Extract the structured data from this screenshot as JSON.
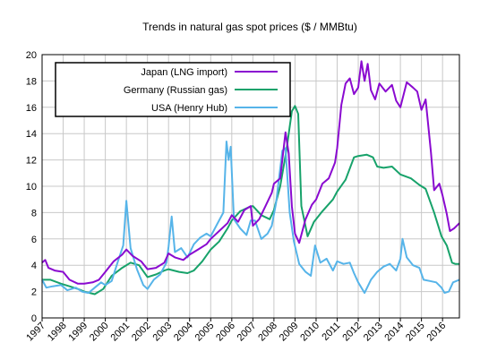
{
  "chart_data": {
    "type": "line",
    "title": "Trends in natural gas spot prices ($ / MMBtu)",
    "xlabel": "",
    "ylabel": "",
    "xlim": [
      1997,
      2016.8
    ],
    "ylim": [
      0,
      20
    ],
    "x_ticks": [
      "1997",
      "1998",
      "1999",
      "2000",
      "2001",
      "2002",
      "2003",
      "2004",
      "2005",
      "2006",
      "2007",
      "2008",
      "2009",
      "2010",
      "2011",
      "2012",
      "2013",
      "2014",
      "2015",
      "2016"
    ],
    "y_ticks": [
      "0",
      "2",
      "4",
      "6",
      "8",
      "10",
      "12",
      "14",
      "16",
      "18",
      "20"
    ],
    "grid": true,
    "legend_position": "top-left",
    "series": [
      {
        "name": "Japan (LNG import)",
        "color": "#8a0ad0",
        "points": [
          [
            1997.0,
            4.2
          ],
          [
            1997.15,
            4.4
          ],
          [
            1997.3,
            3.8
          ],
          [
            1997.6,
            3.6
          ],
          [
            1998.0,
            3.5
          ],
          [
            1998.3,
            2.9
          ],
          [
            1998.7,
            2.6
          ],
          [
            1999.0,
            2.6
          ],
          [
            1999.4,
            2.7
          ],
          [
            1999.7,
            2.9
          ],
          [
            2000.0,
            3.5
          ],
          [
            2000.4,
            4.3
          ],
          [
            2000.8,
            4.8
          ],
          [
            2001.0,
            5.2
          ],
          [
            2001.3,
            4.7
          ],
          [
            2001.7,
            4.3
          ],
          [
            2002.0,
            3.7
          ],
          [
            2002.4,
            3.8
          ],
          [
            2002.8,
            4.2
          ],
          [
            2003.0,
            4.9
          ],
          [
            2003.3,
            4.6
          ],
          [
            2003.7,
            4.4
          ],
          [
            2004.0,
            4.8
          ],
          [
            2004.4,
            5.2
          ],
          [
            2004.8,
            5.6
          ],
          [
            2005.0,
            6.0
          ],
          [
            2005.4,
            6.6
          ],
          [
            2005.8,
            7.2
          ],
          [
            2006.0,
            7.8
          ],
          [
            2006.3,
            7.3
          ],
          [
            2006.6,
            8.2
          ],
          [
            2006.9,
            8.5
          ],
          [
            2007.0,
            7.0
          ],
          [
            2007.3,
            7.5
          ],
          [
            2007.6,
            8.5
          ],
          [
            2007.9,
            9.5
          ],
          [
            2008.0,
            10.2
          ],
          [
            2008.3,
            10.6
          ],
          [
            2008.55,
            14.1
          ],
          [
            2008.7,
            12.5
          ],
          [
            2008.85,
            8.5
          ],
          [
            2009.0,
            6.4
          ],
          [
            2009.2,
            5.7
          ],
          [
            2009.5,
            7.5
          ],
          [
            2009.8,
            8.6
          ],
          [
            2010.0,
            9.0
          ],
          [
            2010.3,
            10.2
          ],
          [
            2010.6,
            10.6
          ],
          [
            2010.9,
            11.8
          ],
          [
            2011.0,
            12.9
          ],
          [
            2011.2,
            16.2
          ],
          [
            2011.4,
            17.8
          ],
          [
            2011.6,
            18.2
          ],
          [
            2011.8,
            17.0
          ],
          [
            2012.0,
            17.5
          ],
          [
            2012.15,
            19.5
          ],
          [
            2012.3,
            18.0
          ],
          [
            2012.45,
            19.3
          ],
          [
            2012.6,
            17.3
          ],
          [
            2012.8,
            16.6
          ],
          [
            2013.0,
            17.8
          ],
          [
            2013.3,
            17.2
          ],
          [
            2013.6,
            17.7
          ],
          [
            2013.8,
            16.5
          ],
          [
            2014.0,
            16.0
          ],
          [
            2014.3,
            17.9
          ],
          [
            2014.6,
            17.5
          ],
          [
            2014.8,
            17.2
          ],
          [
            2015.0,
            15.8
          ],
          [
            2015.2,
            16.6
          ],
          [
            2015.45,
            12.6
          ],
          [
            2015.6,
            9.7
          ],
          [
            2015.85,
            10.2
          ],
          [
            2016.0,
            9.3
          ],
          [
            2016.2,
            7.9
          ],
          [
            2016.35,
            6.6
          ],
          [
            2016.55,
            6.8
          ],
          [
            2016.8,
            7.2
          ]
        ]
      },
      {
        "name": "Germany (Russian gas)",
        "color": "#17a26a",
        "points": [
          [
            1997.0,
            2.9
          ],
          [
            1997.4,
            2.9
          ],
          [
            1997.9,
            2.6
          ],
          [
            1998.3,
            2.4
          ],
          [
            1998.7,
            2.2
          ],
          [
            1999.0,
            2.0
          ],
          [
            1999.5,
            1.8
          ],
          [
            1999.9,
            2.2
          ],
          [
            2000.3,
            3.2
          ],
          [
            2000.8,
            3.8
          ],
          [
            2001.2,
            4.2
          ],
          [
            2001.6,
            4.0
          ],
          [
            2002.0,
            3.1
          ],
          [
            2002.4,
            3.3
          ],
          [
            2002.8,
            3.6
          ],
          [
            2003.0,
            3.7
          ],
          [
            2003.5,
            3.5
          ],
          [
            2003.9,
            3.4
          ],
          [
            2004.2,
            3.6
          ],
          [
            2004.6,
            4.3
          ],
          [
            2005.0,
            5.2
          ],
          [
            2005.4,
            5.8
          ],
          [
            2005.8,
            6.8
          ],
          [
            2006.0,
            7.4
          ],
          [
            2006.4,
            8.1
          ],
          [
            2006.8,
            8.4
          ],
          [
            2007.0,
            8.5
          ],
          [
            2007.4,
            7.8
          ],
          [
            2007.8,
            7.5
          ],
          [
            2008.0,
            8.2
          ],
          [
            2008.3,
            10.0
          ],
          [
            2008.6,
            12.8
          ],
          [
            2008.85,
            15.7
          ],
          [
            2009.0,
            16.1
          ],
          [
            2009.15,
            15.5
          ],
          [
            2009.3,
            8.5
          ],
          [
            2009.6,
            6.2
          ],
          [
            2009.9,
            7.3
          ],
          [
            2010.3,
            8.1
          ],
          [
            2010.8,
            9.0
          ],
          [
            2011.0,
            9.6
          ],
          [
            2011.4,
            10.5
          ],
          [
            2011.8,
            12.2
          ],
          [
            2012.0,
            12.3
          ],
          [
            2012.4,
            12.4
          ],
          [
            2012.7,
            12.2
          ],
          [
            2012.9,
            11.5
          ],
          [
            2013.2,
            11.4
          ],
          [
            2013.6,
            11.5
          ],
          [
            2014.0,
            10.9
          ],
          [
            2014.5,
            10.6
          ],
          [
            2014.9,
            10.1
          ],
          [
            2015.2,
            9.8
          ],
          [
            2015.6,
            8.0
          ],
          [
            2015.95,
            6.2
          ],
          [
            2016.2,
            5.5
          ],
          [
            2016.45,
            4.2
          ],
          [
            2016.6,
            4.1
          ],
          [
            2016.8,
            4.1
          ]
        ]
      },
      {
        "name": "USA (Henry Hub)",
        "color": "#56b4e9",
        "points": [
          [
            1997.0,
            2.9
          ],
          [
            1997.2,
            2.3
          ],
          [
            1997.5,
            2.4
          ],
          [
            1997.9,
            2.5
          ],
          [
            1998.2,
            2.1
          ],
          [
            1998.6,
            2.3
          ],
          [
            1998.9,
            2.0
          ],
          [
            1999.2,
            1.9
          ],
          [
            1999.5,
            2.3
          ],
          [
            1999.8,
            2.7
          ],
          [
            2000.0,
            2.5
          ],
          [
            2000.3,
            2.8
          ],
          [
            2000.6,
            4.3
          ],
          [
            2000.85,
            5.5
          ],
          [
            2001.0,
            8.9
          ],
          [
            2001.2,
            5.3
          ],
          [
            2001.5,
            3.7
          ],
          [
            2001.8,
            2.5
          ],
          [
            2002.0,
            2.2
          ],
          [
            2002.3,
            2.9
          ],
          [
            2002.6,
            3.3
          ],
          [
            2002.9,
            4.2
          ],
          [
            2003.0,
            5.4
          ],
          [
            2003.15,
            7.7
          ],
          [
            2003.3,
            5.0
          ],
          [
            2003.6,
            5.3
          ],
          [
            2003.9,
            4.6
          ],
          [
            2004.2,
            5.6
          ],
          [
            2004.5,
            6.1
          ],
          [
            2004.8,
            6.4
          ],
          [
            2005.0,
            6.2
          ],
          [
            2005.3,
            7.1
          ],
          [
            2005.6,
            8.0
          ],
          [
            2005.75,
            13.4
          ],
          [
            2005.85,
            12.0
          ],
          [
            2005.95,
            13.0
          ],
          [
            2006.1,
            7.5
          ],
          [
            2006.4,
            6.8
          ],
          [
            2006.7,
            6.3
          ],
          [
            2006.9,
            7.4
          ],
          [
            2007.1,
            7.4
          ],
          [
            2007.4,
            6.0
          ],
          [
            2007.7,
            6.4
          ],
          [
            2007.9,
            7.0
          ],
          [
            2008.1,
            8.7
          ],
          [
            2008.4,
            12.7
          ],
          [
            2008.55,
            12.9
          ],
          [
            2008.75,
            8.0
          ],
          [
            2008.95,
            5.8
          ],
          [
            2009.2,
            4.1
          ],
          [
            2009.5,
            3.5
          ],
          [
            2009.75,
            3.2
          ],
          [
            2009.95,
            5.5
          ],
          [
            2010.2,
            4.2
          ],
          [
            2010.5,
            4.5
          ],
          [
            2010.8,
            3.6
          ],
          [
            2011.0,
            4.3
          ],
          [
            2011.3,
            4.1
          ],
          [
            2011.6,
            4.2
          ],
          [
            2011.8,
            3.4
          ],
          [
            2012.0,
            2.7
          ],
          [
            2012.3,
            1.9
          ],
          [
            2012.6,
            2.9
          ],
          [
            2012.9,
            3.5
          ],
          [
            2013.2,
            3.9
          ],
          [
            2013.5,
            4.1
          ],
          [
            2013.8,
            3.6
          ],
          [
            2014.0,
            4.5
          ],
          [
            2014.1,
            6.0
          ],
          [
            2014.3,
            4.6
          ],
          [
            2014.6,
            4.0
          ],
          [
            2014.9,
            3.8
          ],
          [
            2015.1,
            2.9
          ],
          [
            2015.4,
            2.8
          ],
          [
            2015.7,
            2.7
          ],
          [
            2015.95,
            2.3
          ],
          [
            2016.1,
            1.9
          ],
          [
            2016.3,
            2.0
          ],
          [
            2016.5,
            2.7
          ],
          [
            2016.8,
            2.9
          ]
        ]
      }
    ]
  }
}
